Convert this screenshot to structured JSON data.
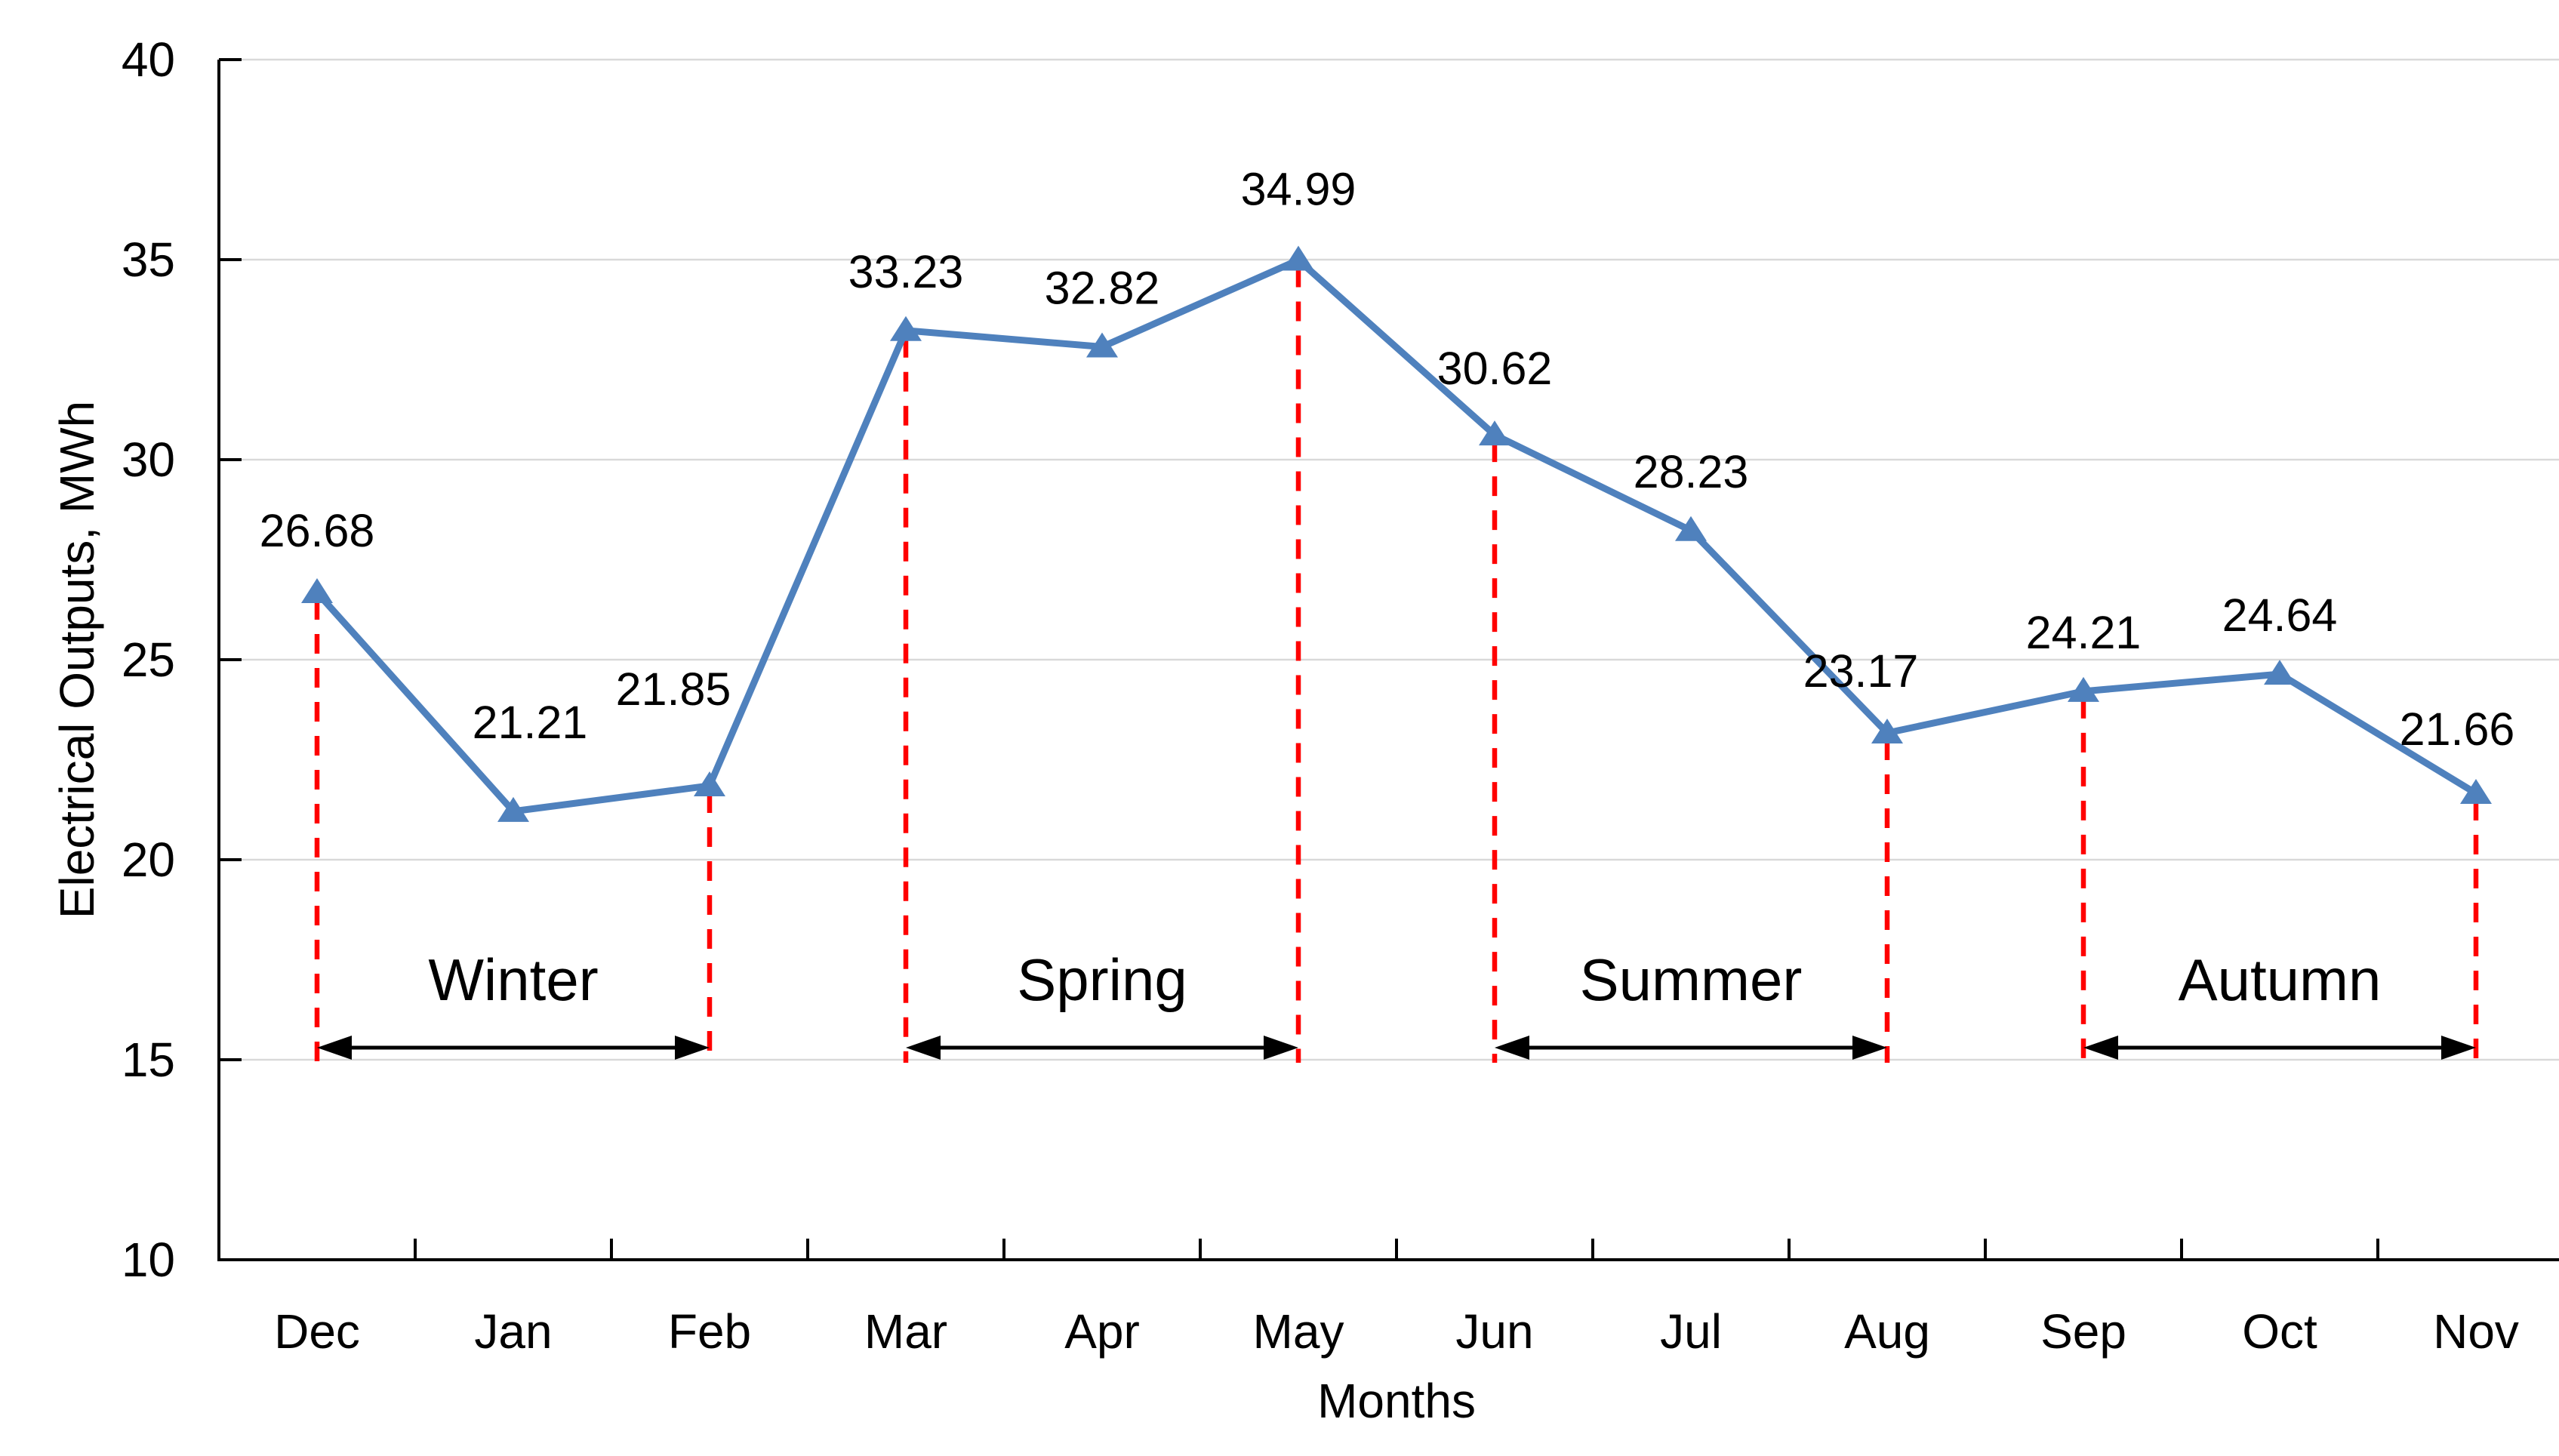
{
  "chart_data": {
    "type": "line",
    "title": "",
    "xlabel": "Months",
    "ylabel": "Electrical Outputs, MWh",
    "categories": [
      "Dec",
      "Jan",
      "Feb",
      "Mar",
      "Apr",
      "May",
      "Jun",
      "Jul",
      "Aug",
      "Sep",
      "Oct",
      "Nov"
    ],
    "series": [
      {
        "name": "Electrical Outputs",
        "marker": "triangle-up",
        "color": "#4F81BD",
        "values": [
          26.68,
          21.21,
          21.85,
          33.23,
          32.82,
          34.99,
          30.62,
          28.23,
          23.17,
          24.21,
          24.64,
          21.66
        ]
      }
    ],
    "data_labels": [
      "26.68",
      "21.21",
      "21.85",
      "33.23",
      "32.82",
      "34.99",
      "30.62",
      "28.23",
      "23.17",
      "24.21",
      "24.64",
      "21.66"
    ],
    "ylim": [
      10,
      40
    ],
    "yticks": [
      10,
      15,
      20,
      25,
      30,
      35,
      40
    ],
    "ytick_labels": [
      "10",
      "15",
      "20",
      "25",
      "30",
      "35",
      "40"
    ],
    "grid": true,
    "legend_position": "none",
    "seasons": [
      {
        "label": "Winter",
        "from": "Dec",
        "to": "Feb"
      },
      {
        "label": "Spring",
        "from": "Mar",
        "to": "May"
      },
      {
        "label": "Summer",
        "from": "Jun",
        "to": "Aug"
      },
      {
        "label": "Autumn",
        "from": "Sep",
        "to": "Nov"
      }
    ]
  },
  "colors": {
    "series_line": "#4F81BD",
    "drop_line": "#FF0000",
    "season_arrow": "#000000",
    "gridline": "#D9D9D9",
    "axis": "#000000",
    "text": "#000000",
    "background": "#FFFFFF"
  }
}
